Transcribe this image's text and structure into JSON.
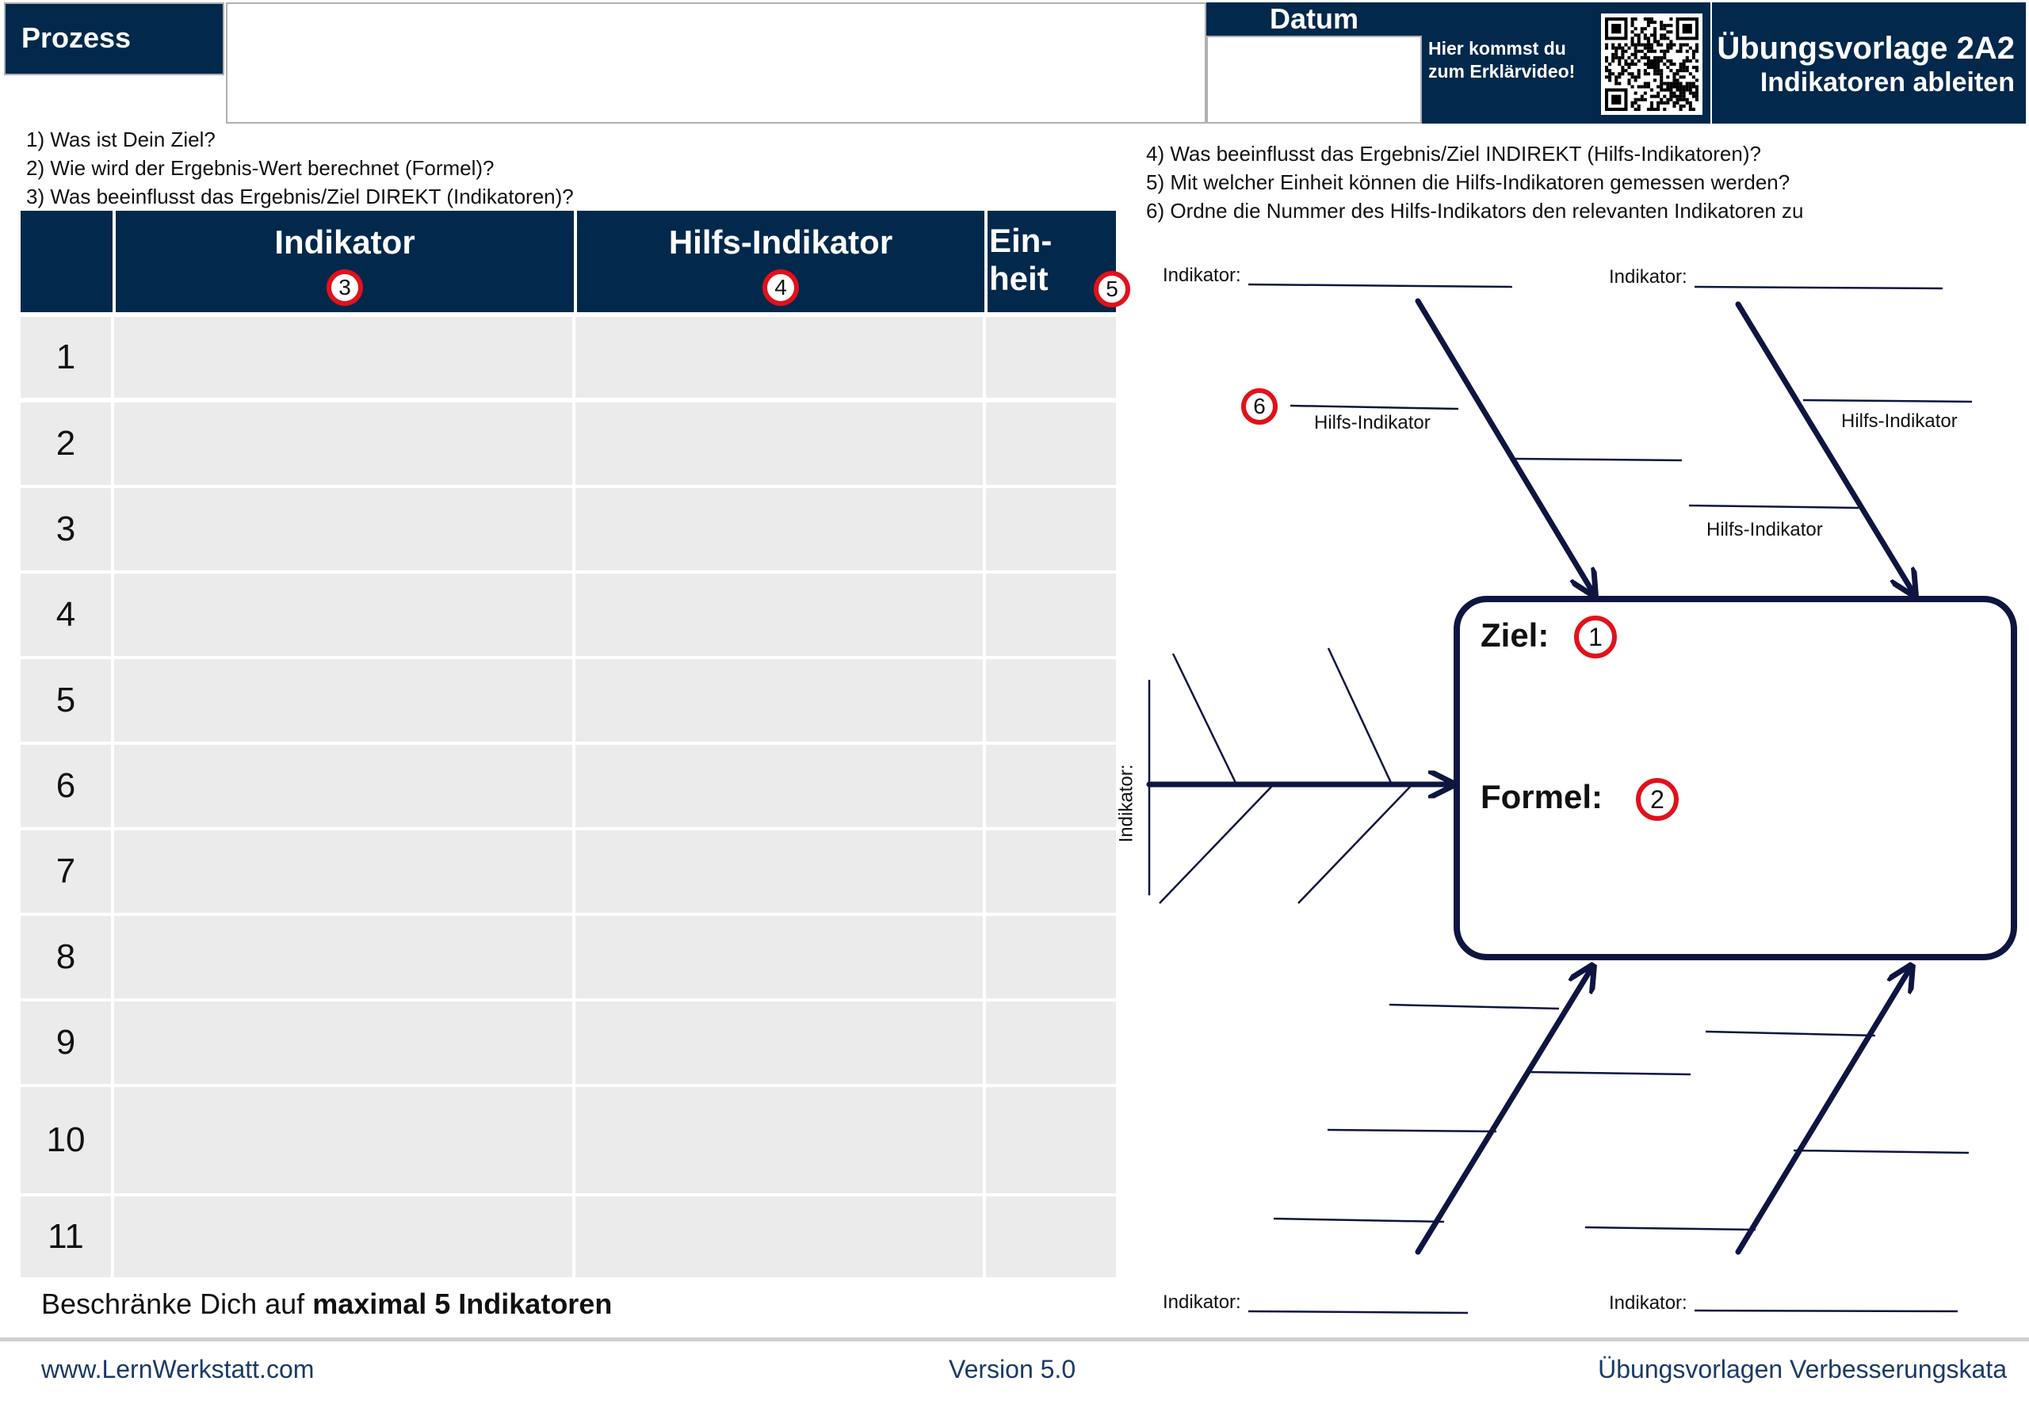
{
  "header": {
    "prozess_label": "Prozess",
    "datum_label": "Datum",
    "video_text_line1": "Hier kommst du",
    "video_text_line2": "zum Erklärvideo!",
    "title_line1": "Übungsvorlage 2A2",
    "title_line2": "Indikatoren ableiten"
  },
  "questions_left": [
    "1) Was ist Dein Ziel?",
    "2) Wie wird der Ergebnis-Wert berechnet (Formel)?",
    "3) Was beeinflusst das Ergebnis/Ziel DIREKT (Indikatoren)?"
  ],
  "questions_right": [
    "4) Was beeinflusst das Ergebnis/Ziel INDIREKT (Hilfs-Indikatoren)?",
    "5) Mit welcher Einheit können die Hilfs-Indikatoren gemessen werden?",
    "6) Ordne die Nummer des Hilfs-Indikators den relevanten Indikatoren zu"
  ],
  "table": {
    "col_indikator": "Indikator",
    "col_indikator_badge": "3",
    "col_hilfs": "Hilfs-Indikator",
    "col_hilfs_badge": "4",
    "col_einheit_line1": "Ein-",
    "col_einheit_line2": "heit",
    "col_einheit_badge": "5",
    "rows": [
      "1",
      "2",
      "3",
      "4",
      "5",
      "6",
      "7",
      "8",
      "9",
      "10",
      "11"
    ]
  },
  "hint": {
    "prefix": "Beschränke Dich auf ",
    "bold": "maximal 5 Indikatoren"
  },
  "diagram": {
    "indikator_label": "Indikator:",
    "hilfs_label": "Hilfs-Indikator",
    "badge_6": "6",
    "ziel_label": "Ziel:",
    "ziel_badge": "1",
    "formel_label": "Formel:",
    "formel_badge": "2"
  },
  "footer": {
    "website": "www.LernWerkstatt.com",
    "version": "Version 5.0",
    "collection": "Übungsvorlagen Verbesserungskata"
  },
  "colors": {
    "navy": "#02284b",
    "badge_red": "#e2111a",
    "cell_grey": "#ebebeb"
  },
  "icons": [
    "qr-code-icon"
  ]
}
